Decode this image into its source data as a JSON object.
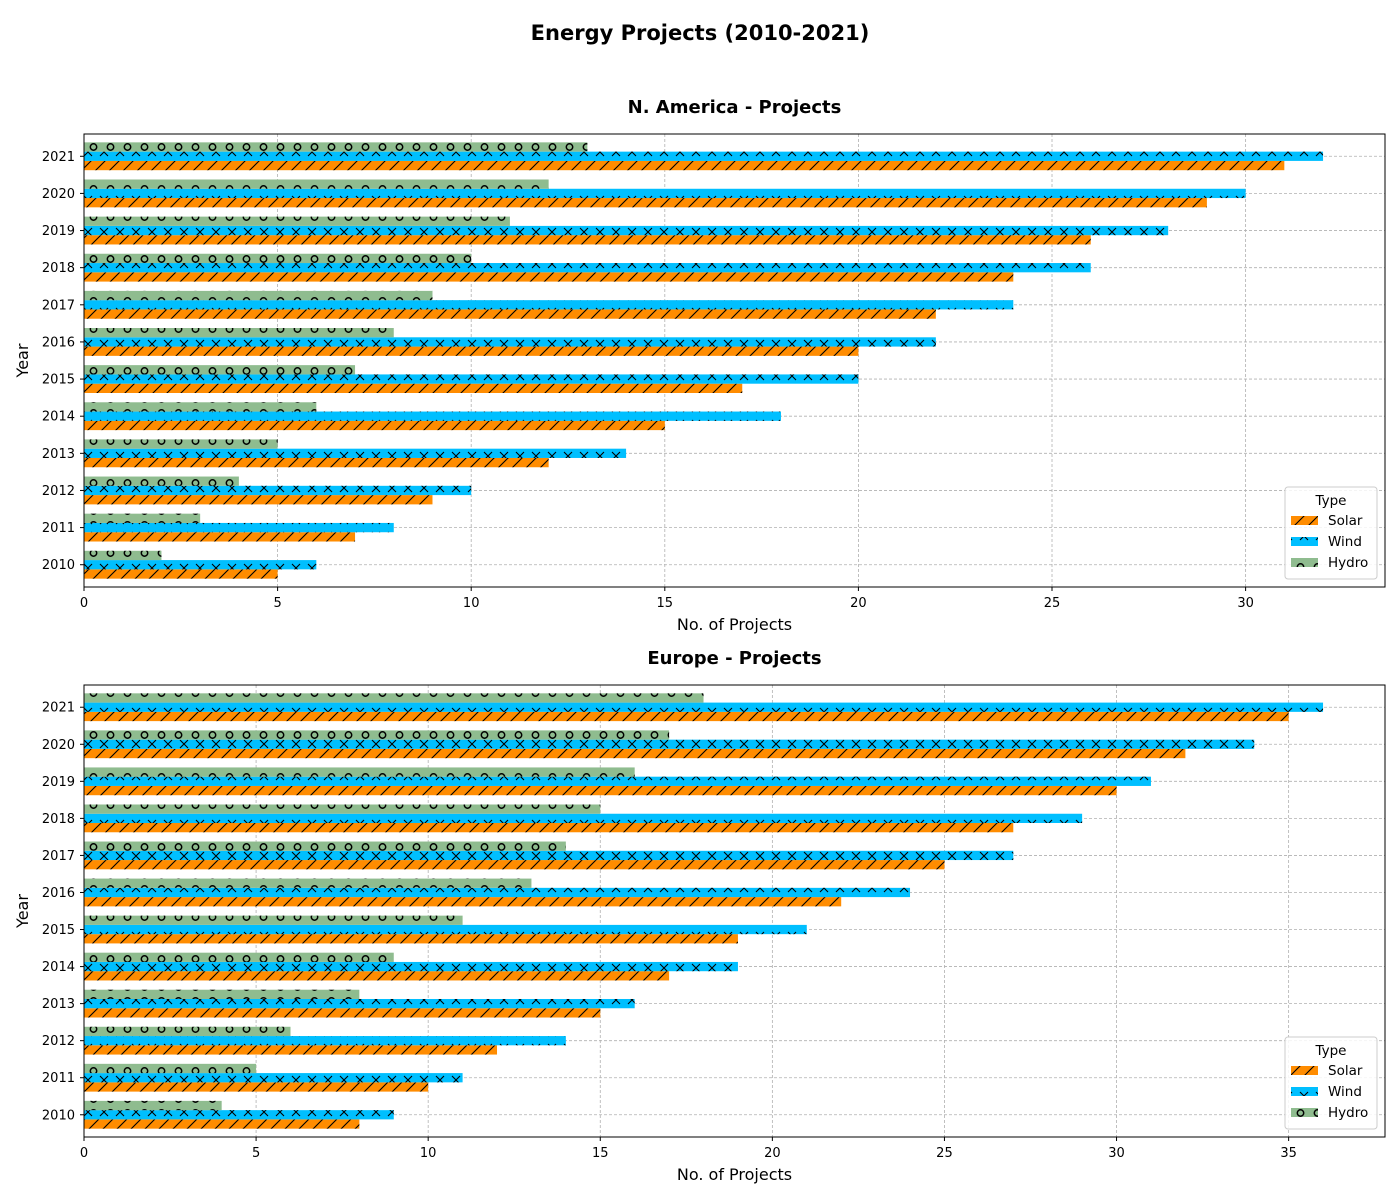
{
  "figure_title": "Energy Projects (2010-2021)",
  "legend_title": "Type",
  "colors": {
    "Solar": "#ff8c00",
    "Wind": "#00bfff",
    "Hydro": "#8fbc8f"
  },
  "hatches": {
    "Solar": "slash",
    "Wind": "cross",
    "Hydro": "circles"
  },
  "chart_data": [
    {
      "type": "bar",
      "orientation": "horizontal",
      "title": "N. America - Projects",
      "xlabel": "No. of Projects",
      "ylabel": "Year",
      "categories": [
        "2010",
        "2011",
        "2012",
        "2013",
        "2014",
        "2015",
        "2016",
        "2017",
        "2018",
        "2019",
        "2020",
        "2021"
      ],
      "xlim": [
        0,
        33.6
      ],
      "xticks": [
        0,
        5,
        10,
        15,
        20,
        25,
        30
      ],
      "grid": true,
      "legend_position": "lower-right",
      "series": [
        {
          "name": "Solar",
          "values": [
            5,
            7,
            9,
            12,
            15,
            17,
            20,
            22,
            24,
            26,
            29,
            31
          ]
        },
        {
          "name": "Wind",
          "values": [
            6,
            8,
            10,
            14,
            18,
            20,
            22,
            24,
            26,
            28,
            30,
            32
          ]
        },
        {
          "name": "Hydro",
          "values": [
            2,
            3,
            4,
            5,
            6,
            7,
            8,
            9,
            10,
            11,
            12,
            13
          ]
        }
      ]
    },
    {
      "type": "bar",
      "orientation": "horizontal",
      "title": "Europe - Projects",
      "xlabel": "No. of Projects",
      "ylabel": "Year",
      "categories": [
        "2010",
        "2011",
        "2012",
        "2013",
        "2014",
        "2015",
        "2016",
        "2017",
        "2018",
        "2019",
        "2020",
        "2021"
      ],
      "xlim": [
        0,
        37.8
      ],
      "xticks": [
        0,
        5,
        10,
        15,
        20,
        25,
        30,
        35
      ],
      "grid": true,
      "legend_position": "lower-right",
      "series": [
        {
          "name": "Solar",
          "values": [
            8,
            10,
            12,
            15,
            17,
            19,
            22,
            25,
            27,
            30,
            32,
            35
          ]
        },
        {
          "name": "Wind",
          "values": [
            9,
            11,
            14,
            16,
            19,
            21,
            24,
            27,
            29,
            31,
            34,
            36
          ]
        },
        {
          "name": "Hydro",
          "values": [
            4,
            5,
            6,
            8,
            9,
            11,
            13,
            14,
            15,
            16,
            17,
            18
          ]
        }
      ]
    }
  ]
}
